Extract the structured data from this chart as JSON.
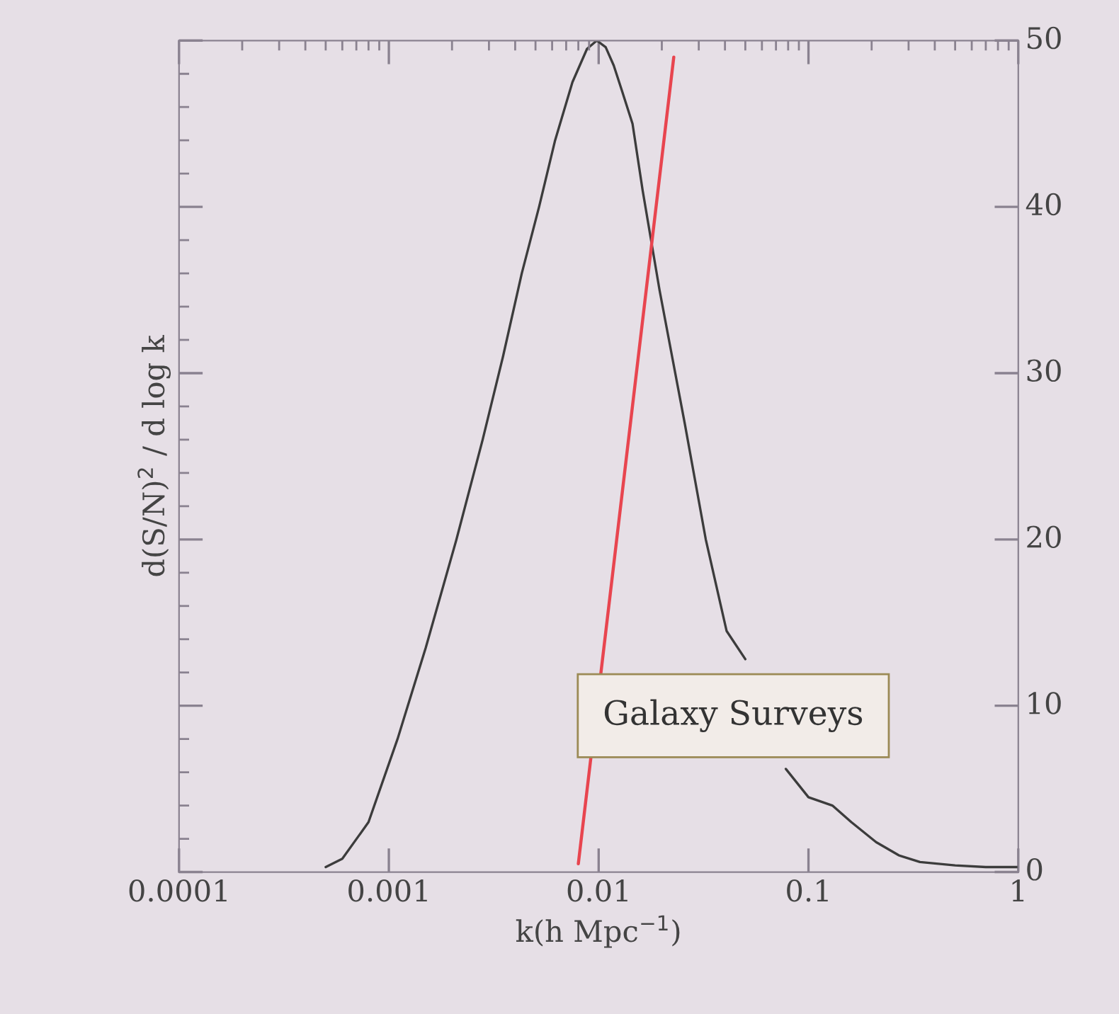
{
  "chart_data": {
    "type": "line",
    "xlabel": "k(h Mpc$^{−1}$)",
    "ylabel": "d(S/N)$^{2}$ / d log k",
    "log": "x",
    "xlim": [
      0.0001,
      1
    ],
    "xticks": [
      {
        "value": 0.0001,
        "label": "0.0001"
      },
      {
        "value": 0.001,
        "label": "0.001"
      },
      {
        "value": 0.01,
        "label": "0.01"
      },
      {
        "value": 0.1,
        "label": "0.1"
      },
      {
        "value": 1,
        "label": "1"
      }
    ],
    "ylim": [
      0,
      50
    ],
    "yticks": [
      0,
      10,
      20,
      30,
      40,
      50
    ],
    "grid": false,
    "legend": false,
    "marker": "none",
    "line_style": "solid",
    "series": [
      {
        "color": "#3c3c3c",
        "x": [
          0.0005,
          0.0006,
          0.0008,
          0.0011,
          0.0015,
          0.0021,
          0.0028,
          0.0035,
          0.0043,
          0.0052,
          0.0062,
          0.0075,
          0.0088,
          0.0098,
          0.0108,
          0.0118,
          0.0129,
          0.0145,
          0.0162,
          0.0195,
          0.0257,
          0.0324,
          0.0407,
          0.05,
          0.063,
          0.078,
          0.1,
          0.13,
          0.16,
          0.21,
          0.27,
          0.34,
          0.5,
          0.7,
          1
        ],
        "values": [
          0.3,
          0.8,
          3,
          8,
          13.5,
          20,
          26,
          31,
          36,
          40,
          44,
          47.5,
          49.5,
          50,
          49.6,
          48.5,
          47,
          45,
          41,
          35,
          27,
          20,
          14.5,
          12.8,
          null,
          6.2,
          4.5,
          4,
          3,
          1.8,
          1,
          0.6,
          0.4,
          0.3,
          0.3
        ]
      },
      {
        "color": "#e8454f",
        "x": [
          0.008,
          0.0228
        ],
        "values": [
          0.5,
          49
        ]
      }
    ],
    "annotations": [
      "Galaxy Surveys"
    ]
  }
}
